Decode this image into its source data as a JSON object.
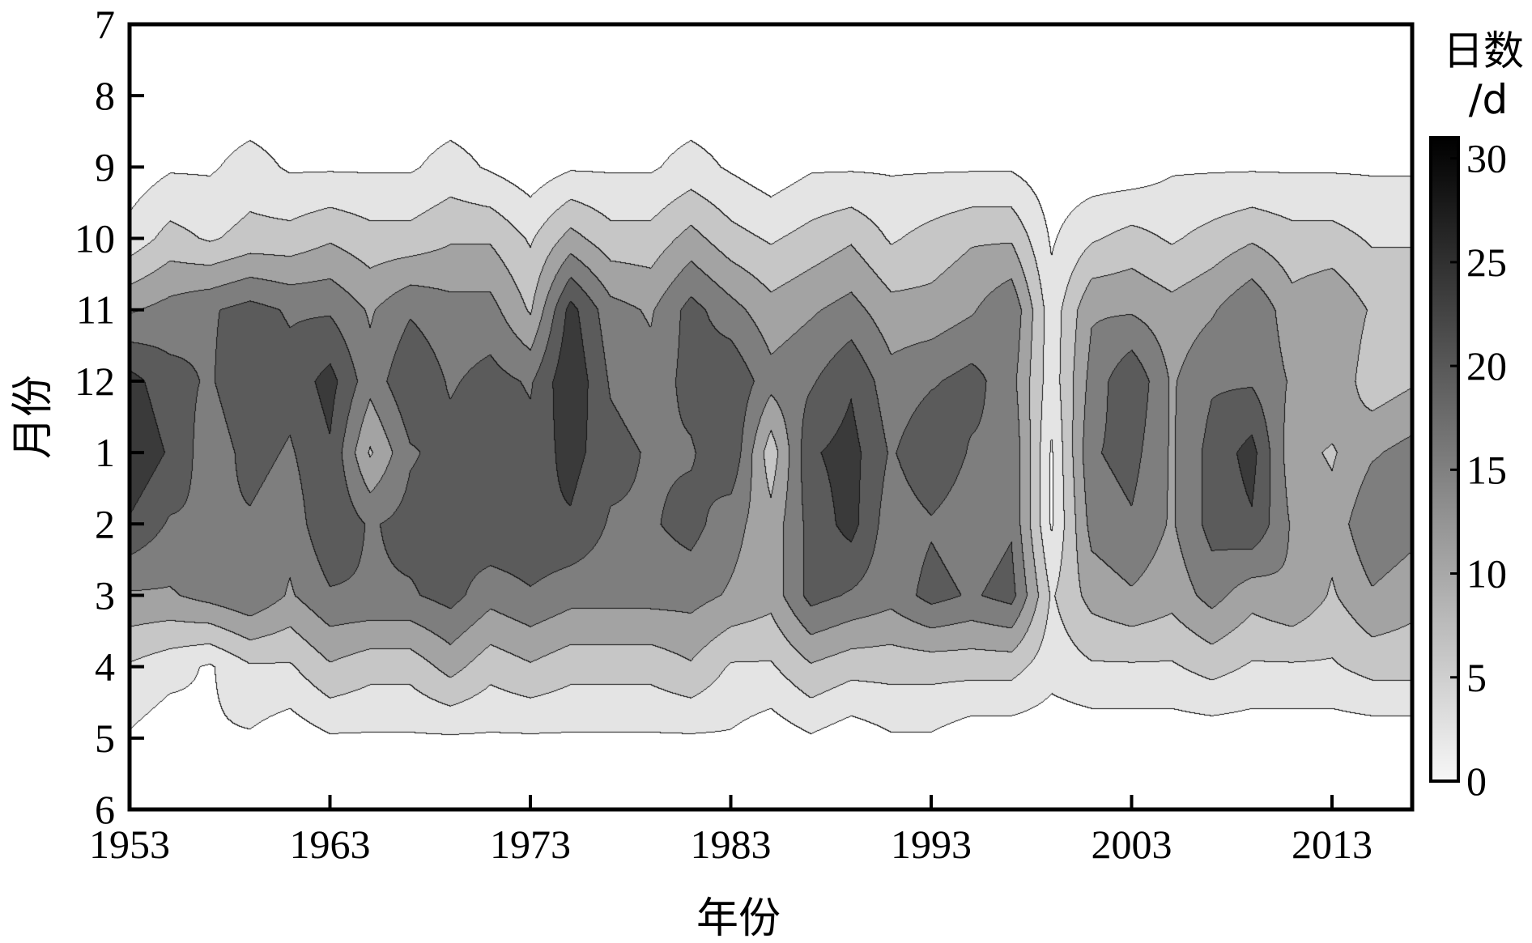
{
  "chart_data": {
    "type": "heatmap",
    "subtype": "filled-contour",
    "xlabel": "年份",
    "ylabel": "月份",
    "x_ticks": [
      "1953",
      "1963",
      "1973",
      "1983",
      "1993",
      "2003",
      "2013"
    ],
    "x_range": [
      1953,
      2017
    ],
    "y_ticks": [
      "7",
      "8",
      "9",
      "10",
      "11",
      "12",
      "1",
      "2",
      "3",
      "4",
      "5",
      "6"
    ],
    "y_range_months_from_july": [
      0,
      11
    ],
    "colorbar": {
      "title_line1": "日数",
      "title_line2": "/d",
      "ticks": [
        "0",
        "5",
        "10",
        "15",
        "20",
        "25",
        "30"
      ],
      "range": [
        0,
        31
      ],
      "levels": [
        0,
        2.5,
        6.5,
        10.5,
        14.5,
        18.5,
        22.5,
        26.5
      ],
      "colors": [
        "#ffffff",
        "#e4e4e4",
        "#c6c6c6",
        "#a3a3a3",
        "#7e7e7e",
        "#5b5b5b",
        "#3a3a3a",
        "#1c1c1c"
      ]
    },
    "grid": false,
    "legend": "colorbar-right",
    "years": [
      1953,
      1955,
      1957,
      1959,
      1961,
      1963,
      1965,
      1967,
      1969,
      1971,
      1973,
      1975,
      1977,
      1979,
      1981,
      1983,
      1985,
      1987,
      1989,
      1991,
      1993,
      1995,
      1997,
      1999,
      2001,
      2003,
      2005,
      2007,
      2009,
      2011,
      2013,
      2015,
      2017
    ],
    "months": [
      "Sep",
      "Oct",
      "Nov",
      "Dec",
      "Jan",
      "Feb",
      "Mar",
      "Apr",
      "May"
    ],
    "values": [
      [
        0,
        2,
        2,
        4,
        2,
        2,
        2,
        2,
        4,
        2,
        0,
        2,
        2,
        2,
        4,
        2,
        0,
        2,
        2,
        2,
        2,
        2,
        2,
        0,
        0,
        0,
        2,
        2,
        2,
        2,
        2,
        2,
        2
      ],
      [
        4,
        8,
        6,
        8,
        8,
        10,
        8,
        8,
        10,
        10,
        6,
        12,
        8,
        8,
        12,
        8,
        6,
        8,
        10,
        6,
        8,
        10,
        10,
        2,
        6,
        8,
        6,
        8,
        10,
        8,
        8,
        6,
        6
      ],
      [
        14,
        16,
        18,
        20,
        18,
        18,
        14,
        18,
        16,
        16,
        10,
        24,
        16,
        14,
        20,
        16,
        12,
        14,
        16,
        12,
        12,
        14,
        18,
        4,
        14,
        14,
        12,
        14,
        18,
        12,
        14,
        10,
        10
      ],
      [
        24,
        20,
        18,
        22,
        20,
        24,
        16,
        22,
        18,
        20,
        18,
        26,
        18,
        16,
        20,
        22,
        16,
        18,
        22,
        16,
        18,
        20,
        16,
        4,
        16,
        22,
        14,
        18,
        18,
        14,
        14,
        8,
        10
      ],
      [
        26,
        22,
        16,
        20,
        18,
        22,
        10,
        18,
        20,
        22,
        20,
        24,
        20,
        18,
        18,
        22,
        8,
        22,
        24,
        18,
        22,
        18,
        18,
        2,
        18,
        20,
        14,
        20,
        24,
        12,
        10,
        14,
        16
      ],
      [
        22,
        18,
        18,
        18,
        16,
        22,
        18,
        20,
        20,
        22,
        22,
        22,
        18,
        18,
        20,
        16,
        12,
        20,
        24,
        16,
        18,
        16,
        18,
        2,
        16,
        18,
        14,
        20,
        22,
        14,
        12,
        18,
        16
      ],
      [
        14,
        14,
        16,
        18,
        14,
        18,
        18,
        18,
        20,
        16,
        18,
        16,
        16,
        16,
        16,
        14,
        12,
        20,
        18,
        16,
        20,
        18,
        20,
        6,
        12,
        14,
        12,
        16,
        12,
        14,
        10,
        14,
        12
      ],
      [
        6,
        4,
        2,
        6,
        6,
        10,
        8,
        8,
        12,
        8,
        10,
        8,
        8,
        8,
        10,
        6,
        6,
        10,
        8,
        8,
        8,
        8,
        8,
        4,
        6,
        6,
        6,
        8,
        6,
        6,
        6,
        8,
        8
      ],
      [
        2,
        0,
        2,
        2,
        0,
        2,
        2,
        2,
        2,
        2,
        2,
        2,
        2,
        2,
        2,
        2,
        0,
        2,
        0,
        2,
        2,
        0,
        0,
        0,
        0,
        0,
        0,
        0,
        0,
        0,
        0,
        0,
        0
      ]
    ]
  }
}
